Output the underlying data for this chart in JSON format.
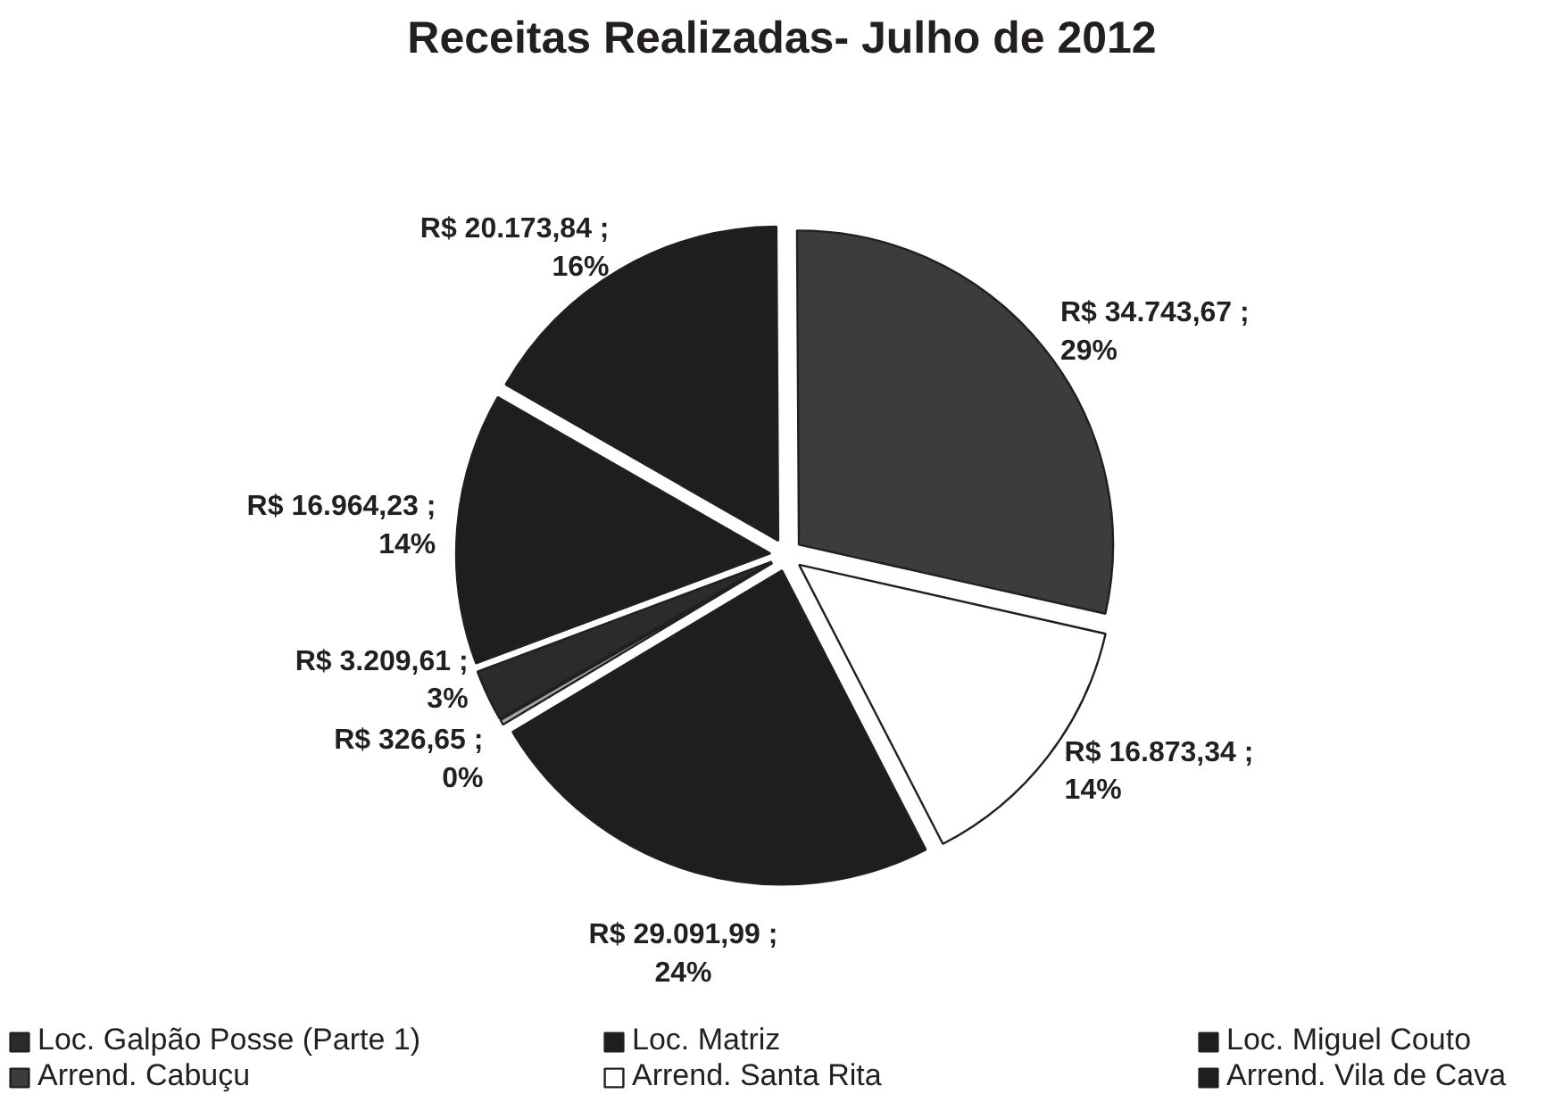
{
  "chart_data": {
    "type": "pie",
    "title": "Receitas Realizadas- Julho de 2012",
    "categories": [
      "Loc. Galpão Posse (Parte 1)",
      "Loc. Matriz",
      "Loc. Miguel Couto",
      "Arrend. Cabuçu",
      "Arrend. Santa Rita",
      "Arrend. Vila de Cava",
      null
    ],
    "values": [
      3209.61,
      16964.23,
      20173.84,
      34743.67,
      16873.34,
      29091.99,
      326.65
    ],
    "colors": [
      "#2b2b2b",
      "#1e1e1e",
      "#1e1e1e",
      "#3c3c3c",
      "#ffffff",
      "#1e1e1e",
      "#a6a6a6"
    ],
    "value_labels": [
      "R$ 3.209,61 ;\n3%",
      "R$ 16.964,23 ;\n14%",
      "R$ 20.173,84 ;\n16%",
      "R$ 34.743,67 ;\n29%",
      "R$ 16.873,34 ;\n14%",
      "R$ 29.091,99 ;\n24%",
      "R$ 326,65 ;\n0%"
    ],
    "legend": "bottom"
  }
}
